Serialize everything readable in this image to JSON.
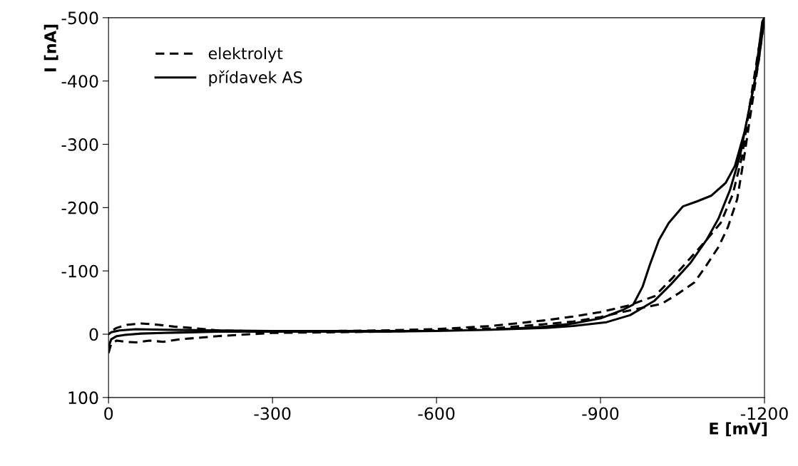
{
  "chart_data": {
    "type": "line",
    "xlabel": "E [mV]",
    "ylabel": "I [nA]",
    "xlim": [
      0,
      -1200
    ],
    "ylim": [
      100,
      -500
    ],
    "xticks": [
      0,
      -300,
      -600,
      -900,
      -1200
    ],
    "yticks": [
      100,
      0,
      -100,
      -200,
      -300,
      -400,
      -500
    ],
    "grid": false,
    "legend": "top left",
    "marker": "none",
    "series": [
      {
        "name": "elektrolyt",
        "color": "#000000",
        "line_style": "dashed",
        "x": [
          0,
          -5,
          -15,
          -30,
          -50,
          -75,
          -100,
          -130,
          -160,
          -200,
          -300,
          -400,
          -500,
          -600,
          -700,
          -800,
          -850,
          -900,
          -950,
          -1012,
          -1042,
          -1072,
          -1094,
          -1116,
          -1133,
          -1150,
          -1163,
          -1176,
          -1189,
          -1198,
          -1200,
          -1189,
          -1172,
          -1159,
          -1142,
          -1120,
          -1094,
          -1064,
          -1033,
          -999,
          -950,
          -900,
          -850,
          -800,
          -700,
          -600,
          -500,
          -400,
          -300,
          -200,
          -150,
          -120,
          -90,
          -60,
          -35,
          -15,
          -5,
          0
        ],
        "values": [
          30,
          15,
          10,
          12,
          13,
          10,
          12,
          8,
          6,
          3,
          -2,
          -3,
          -4,
          -6,
          -9,
          -16,
          -20,
          -27,
          -37,
          -48,
          -64,
          -82,
          -109,
          -138,
          -169,
          -213,
          -281,
          -356,
          -430,
          -487,
          -500,
          -449,
          -356,
          -281,
          -221,
          -176,
          -149,
          -120,
          -90,
          -60,
          -45,
          -35,
          -28,
          -22,
          -13,
          -8,
          -6,
          -5,
          -4,
          -6,
          -10,
          -12,
          -15,
          -17,
          -15,
          -10,
          -5,
          0
        ]
      },
      {
        "name": "přídavek AS",
        "color": "#000000",
        "line_style": "solid",
        "x": [
          0,
          -5,
          -15,
          -30,
          -60,
          -100,
          -150,
          -200,
          -300,
          -400,
          -500,
          -600,
          -700,
          -800,
          -850,
          -900,
          -940,
          -960,
          -977,
          -990,
          -1007,
          -1025,
          -1051,
          -1077,
          -1103,
          -1129,
          -1146,
          -1163,
          -1181,
          -1196,
          -1200,
          -1189,
          -1172,
          -1155,
          -1137,
          -1116,
          -1094,
          -1064,
          -1029,
          -999,
          -954,
          -911,
          -850,
          -800,
          -700,
          -600,
          -500,
          -400,
          -300,
          -200,
          -100,
          -50,
          -20,
          -5,
          0
        ],
        "values": [
          20,
          8,
          3,
          1,
          -1,
          -2,
          -3,
          -4,
          -4,
          -4,
          -4,
          -5,
          -7,
          -12,
          -17,
          -25,
          -38,
          -47,
          -75,
          -109,
          -149,
          -176,
          -202,
          -210,
          -219,
          -239,
          -266,
          -318,
          -393,
          -494,
          -500,
          -430,
          -356,
          -281,
          -228,
          -183,
          -149,
          -112,
          -79,
          -53,
          -30,
          -19,
          -13,
          -10,
          -7,
          -5,
          -5,
          -5,
          -5,
          -6,
          -7,
          -8,
          -6,
          -3,
          0
        ]
      }
    ]
  }
}
